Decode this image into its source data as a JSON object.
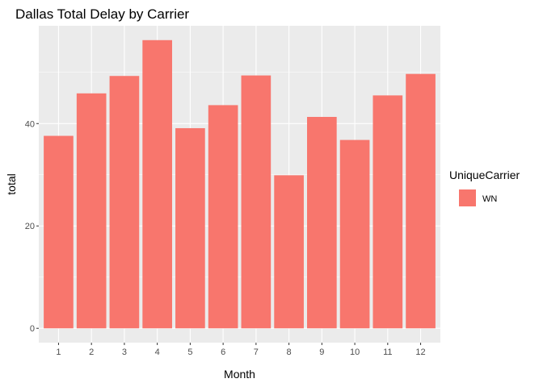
{
  "chart_data": {
    "type": "bar",
    "title": "Dallas Total Delay by Carrier",
    "xlabel": "Month",
    "ylabel": "total",
    "categories": [
      "1",
      "2",
      "3",
      "4",
      "5",
      "6",
      "7",
      "8",
      "9",
      "10",
      "11",
      "12"
    ],
    "series": [
      {
        "name": "WN",
        "color": "#F8766D",
        "values": [
          37.6,
          45.9,
          49.3,
          56.3,
          39.1,
          43.6,
          49.4,
          29.9,
          41.3,
          36.8,
          45.5,
          49.7
        ]
      }
    ],
    "ylim": [
      -2.8,
      59.1
    ],
    "yticks": [
      0,
      20,
      40
    ],
    "ytick_labels": [
      "0",
      "20",
      "40"
    ],
    "grid": true,
    "panel_background": "#EBEBEB",
    "legend": {
      "title": "UniqueCarrier",
      "placement": "right"
    }
  }
}
